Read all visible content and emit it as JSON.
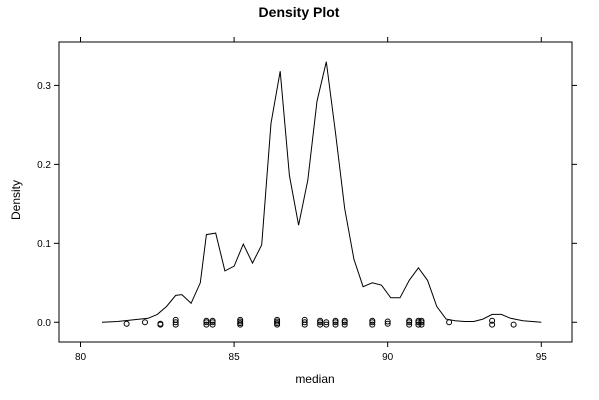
{
  "chart_data": {
    "type": "line",
    "title": "Density Plot",
    "xlabel": "median",
    "ylabel": "Density",
    "xlim": [
      79.3,
      96.0
    ],
    "ylim": [
      -0.025,
      0.355
    ],
    "x_ticks": [
      80,
      85,
      90,
      95
    ],
    "y_ticks": [
      0.0,
      0.1,
      0.2,
      0.3
    ],
    "x_tick_labels": [
      "80",
      "85",
      "90",
      "95"
    ],
    "y_tick_labels": [
      "0.0",
      "0.1",
      "0.2",
      "0.3"
    ],
    "grid": false,
    "line_color": "#000000",
    "density_curve": [
      [
        80.7,
        0.0
      ],
      [
        81.2,
        0.001
      ],
      [
        81.7,
        0.003
      ],
      [
        82.2,
        0.005
      ],
      [
        82.5,
        0.01
      ],
      [
        82.8,
        0.02
      ],
      [
        83.1,
        0.034
      ],
      [
        83.3,
        0.035
      ],
      [
        83.6,
        0.024
      ],
      [
        83.9,
        0.05
      ],
      [
        84.1,
        0.111
      ],
      [
        84.4,
        0.113
      ],
      [
        84.7,
        0.065
      ],
      [
        85.0,
        0.071
      ],
      [
        85.3,
        0.099
      ],
      [
        85.6,
        0.075
      ],
      [
        85.9,
        0.098
      ],
      [
        86.2,
        0.252
      ],
      [
        86.5,
        0.318
      ],
      [
        86.8,
        0.186
      ],
      [
        87.1,
        0.123
      ],
      [
        87.4,
        0.18
      ],
      [
        87.7,
        0.28
      ],
      [
        88.0,
        0.33
      ],
      [
        88.3,
        0.24
      ],
      [
        88.6,
        0.144
      ],
      [
        88.9,
        0.08
      ],
      [
        89.2,
        0.045
      ],
      [
        89.5,
        0.05
      ],
      [
        89.8,
        0.047
      ],
      [
        90.1,
        0.031
      ],
      [
        90.4,
        0.031
      ],
      [
        90.7,
        0.053
      ],
      [
        91.0,
        0.069
      ],
      [
        91.3,
        0.053
      ],
      [
        91.6,
        0.02
      ],
      [
        91.9,
        0.004
      ],
      [
        92.2,
        0.002
      ],
      [
        92.5,
        0.001
      ],
      [
        92.8,
        0.001
      ],
      [
        93.1,
        0.004
      ],
      [
        93.4,
        0.01
      ],
      [
        93.7,
        0.01
      ],
      [
        94.0,
        0.005
      ],
      [
        94.4,
        0.002
      ],
      [
        95.0,
        0.0
      ]
    ],
    "rug_points": [
      [
        81.5,
        -0.002
      ],
      [
        82.1,
        0.0
      ],
      [
        82.6,
        -0.002
      ],
      [
        82.6,
        -0.003
      ],
      [
        83.1,
        -0.003
      ],
      [
        83.1,
        0.0
      ],
      [
        83.1,
        0.003
      ],
      [
        84.1,
        -0.003
      ],
      [
        84.1,
        0.0
      ],
      [
        84.1,
        0.002
      ],
      [
        84.3,
        -0.003
      ],
      [
        84.3,
        0.0
      ],
      [
        84.3,
        0.002
      ],
      [
        85.2,
        -0.003
      ],
      [
        85.2,
        -0.001
      ],
      [
        85.2,
        0.001
      ],
      [
        85.2,
        0.003
      ],
      [
        86.4,
        -0.003
      ],
      [
        86.4,
        -0.001
      ],
      [
        86.4,
        0.001
      ],
      [
        86.4,
        0.003
      ],
      [
        87.3,
        -0.003
      ],
      [
        87.3,
        0.0
      ],
      [
        87.3,
        0.003
      ],
      [
        87.8,
        -0.003
      ],
      [
        87.8,
        0.0
      ],
      [
        87.8,
        0.002
      ],
      [
        88.0,
        -0.003
      ],
      [
        88.0,
        0.0
      ],
      [
        88.3,
        -0.003
      ],
      [
        88.3,
        0.0
      ],
      [
        88.3,
        0.002
      ],
      [
        88.6,
        -0.003
      ],
      [
        88.6,
        0.0
      ],
      [
        88.6,
        0.002
      ],
      [
        89.5,
        -0.003
      ],
      [
        89.5,
        0.0
      ],
      [
        89.5,
        0.002
      ],
      [
        90.0,
        -0.002
      ],
      [
        90.0,
        0.001
      ],
      [
        90.7,
        -0.003
      ],
      [
        90.7,
        0.0
      ],
      [
        90.7,
        0.002
      ],
      [
        91.0,
        -0.003
      ],
      [
        91.0,
        0.0
      ],
      [
        91.0,
        0.002
      ],
      [
        91.1,
        -0.003
      ],
      [
        91.1,
        0.0
      ],
      [
        91.1,
        0.002
      ],
      [
        92.0,
        0.0
      ],
      [
        93.4,
        -0.003
      ],
      [
        93.4,
        0.002
      ],
      [
        94.1,
        -0.003
      ]
    ]
  }
}
